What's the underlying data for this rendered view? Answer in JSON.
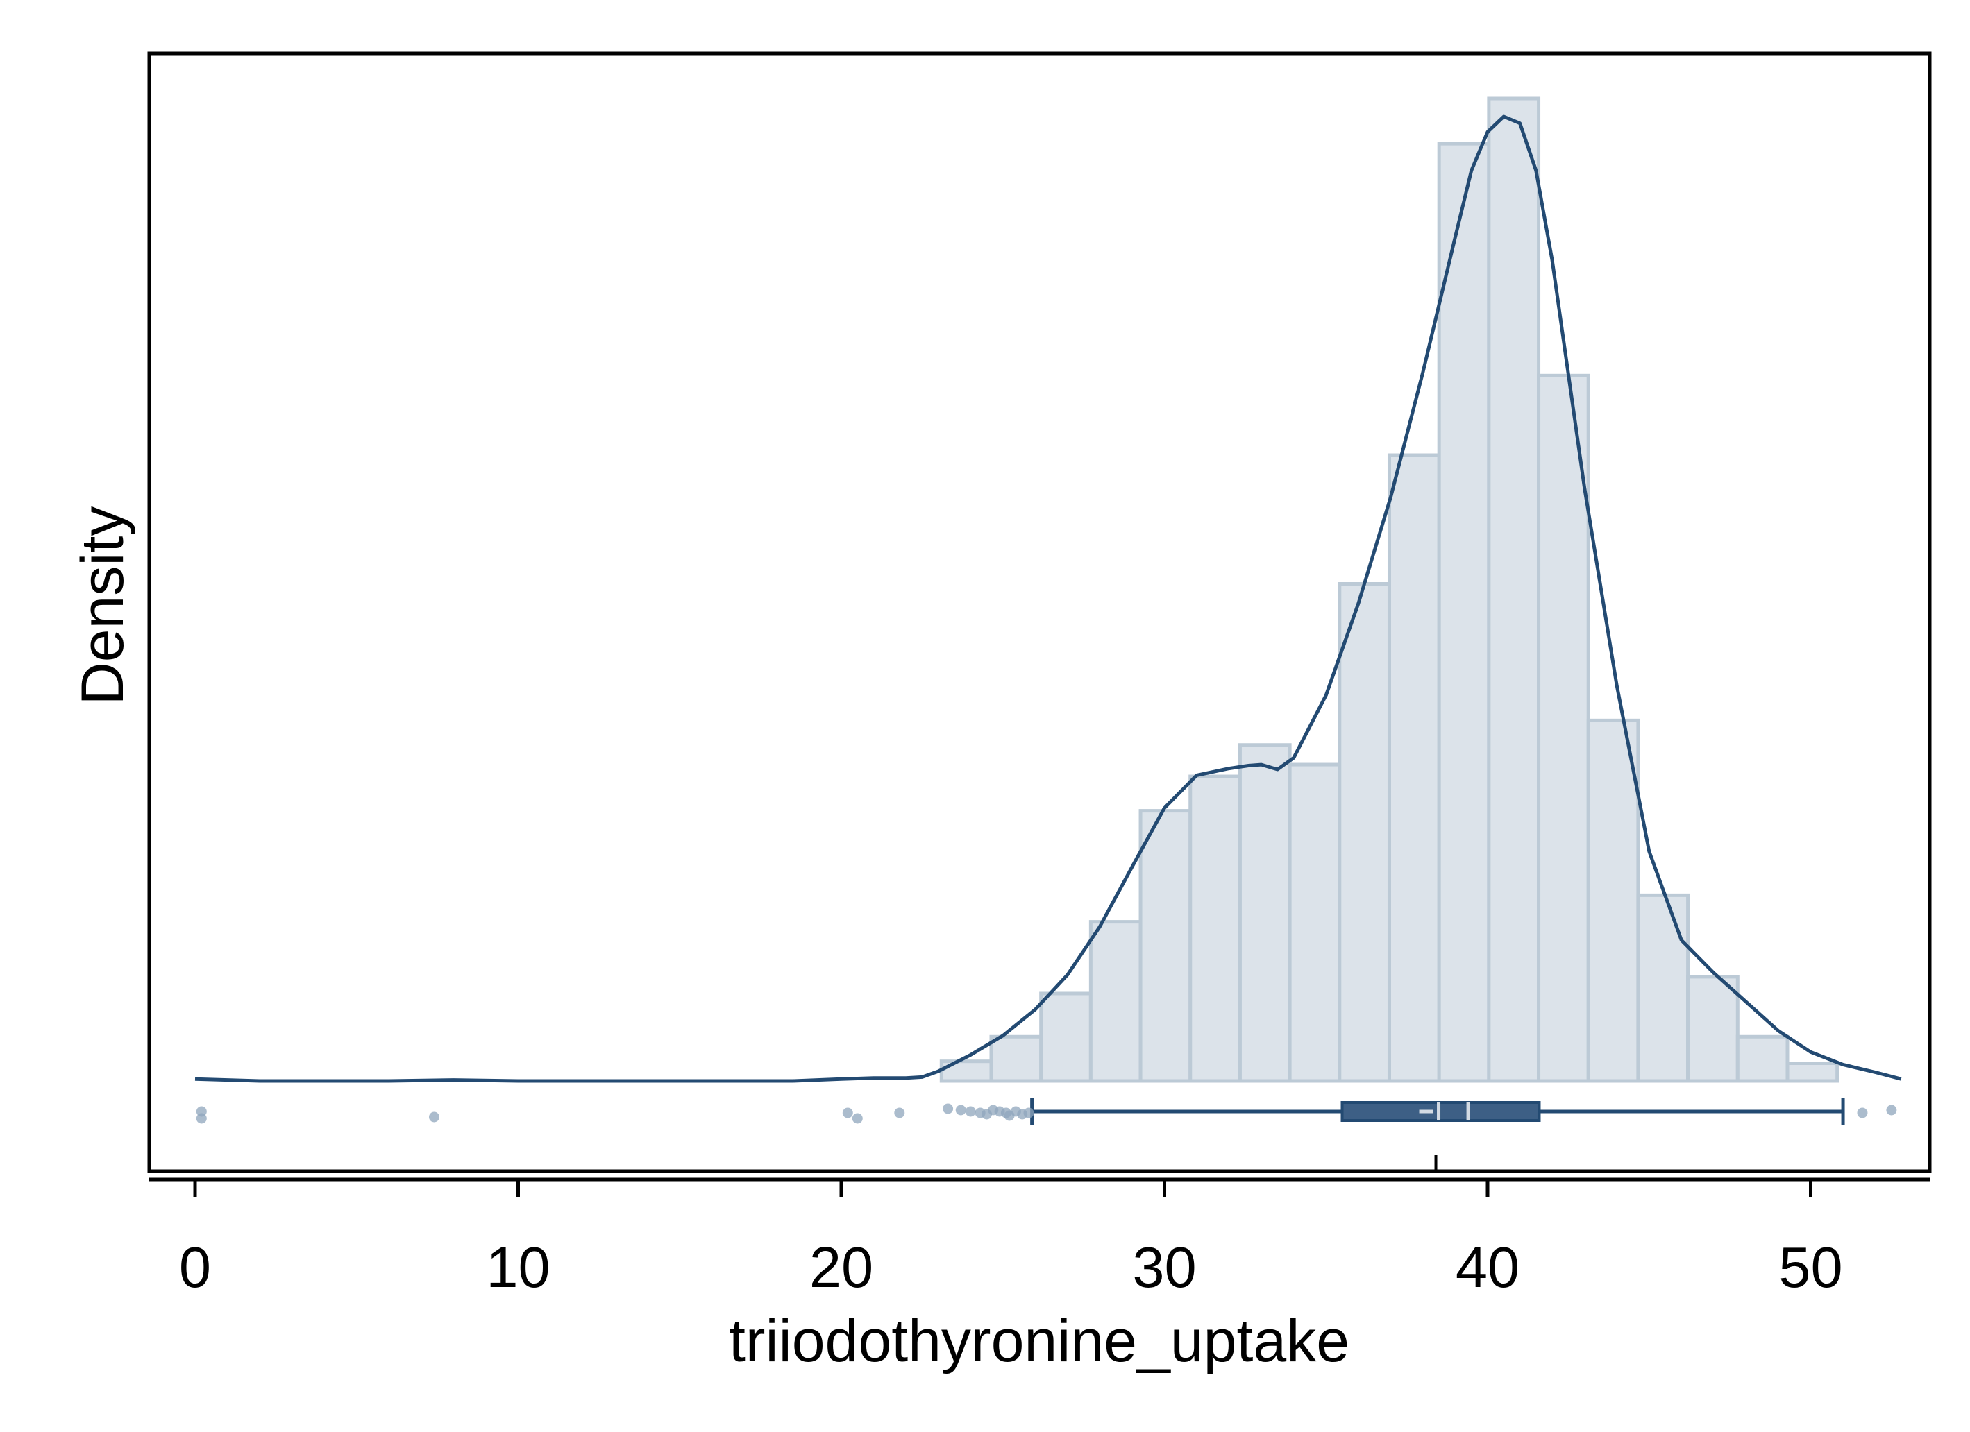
{
  "chart_data": {
    "type": "histogram",
    "xlabel": "triiodothyronine_uptake",
    "ylabel": "Density",
    "xlim": [
      -1.4,
      54.4
    ],
    "x_ticks": [
      "0",
      "10",
      "20",
      "30",
      "40",
      "50"
    ],
    "y_ticks": [],
    "grid": false,
    "legend": "none",
    "colors": {
      "bar_fill": "#dce3ea",
      "bar_stroke": "#bccad6",
      "line": "#234a72",
      "box_fill": "#3d5f85",
      "median_mark": "#d3dbe4",
      "point": "#8fa5bc"
    },
    "histogram": {
      "bin_edges": [
        23.1,
        24.64,
        26.18,
        27.72,
        29.26,
        30.8,
        32.34,
        33.88,
        35.42,
        36.96,
        38.5,
        40.04,
        41.58,
        43.12,
        44.66,
        46.2,
        47.74,
        49.28,
        50.82
      ],
      "relative_heights": [
        0.02,
        0.045,
        0.089,
        0.162,
        0.275,
        0.31,
        0.342,
        0.322,
        0.506,
        0.637,
        0.954,
        1.0,
        0.718,
        0.367,
        0.189,
        0.106,
        0.045,
        0.018
      ]
    },
    "density_curve": {
      "x": [
        0,
        2,
        6,
        8,
        10,
        14,
        18.5,
        20,
        21,
        22,
        22.5,
        23,
        24,
        25,
        26,
        27,
        28,
        29,
        30,
        31,
        32,
        32.6,
        33,
        33.5,
        34,
        35,
        36,
        37,
        38,
        39,
        39.5,
        40,
        40.5,
        41,
        41.5,
        42,
        43,
        44,
        45,
        45.5,
        46,
        47,
        48,
        49,
        50,
        51,
        52,
        52.8
      ],
      "relative_density": [
        0.002,
        0,
        0,
        0.001,
        0,
        0,
        0,
        0.002,
        0.003,
        0.003,
        0.004,
        0.01,
        0.027,
        0.047,
        0.074,
        0.11,
        0.16,
        0.222,
        0.283,
        0.317,
        0.324,
        0.327,
        0.328,
        0.323,
        0.335,
        0.4,
        0.495,
        0.605,
        0.735,
        0.875,
        0.944,
        0.984,
        1.0,
        0.993,
        0.944,
        0.851,
        0.615,
        0.41,
        0.238,
        0.192,
        0.146,
        0.112,
        0.082,
        0.052,
        0.03,
        0.017,
        0.009,
        0.002
      ]
    },
    "boxplot": {
      "whisker_low": 25.9,
      "q1": 35.5,
      "median": 38.4,
      "mean": 39.4,
      "q3": 41.6,
      "whisker_high": 51.0,
      "outliers": [
        0.2,
        0.2,
        7.4,
        20.2,
        20.5,
        21.8,
        23.3,
        23.7,
        24.0,
        24.3,
        24.5,
        24.7,
        24.9,
        25.1,
        25.2,
        25.4,
        25.6,
        25.8,
        51.6,
        52.5
      ]
    }
  }
}
